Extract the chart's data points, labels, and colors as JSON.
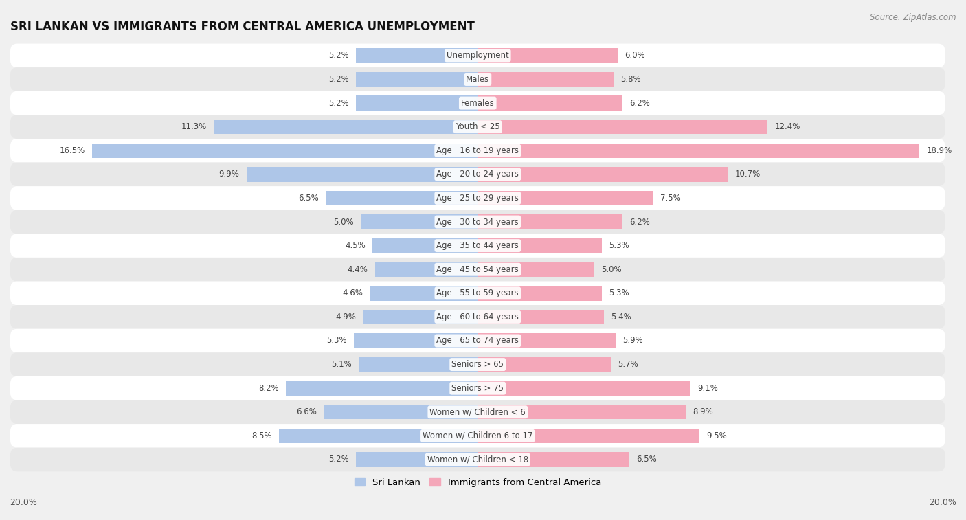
{
  "title": "SRI LANKAN VS IMMIGRANTS FROM CENTRAL AMERICA UNEMPLOYMENT",
  "source": "Source: ZipAtlas.com",
  "categories": [
    "Unemployment",
    "Males",
    "Females",
    "Youth < 25",
    "Age | 16 to 19 years",
    "Age | 20 to 24 years",
    "Age | 25 to 29 years",
    "Age | 30 to 34 years",
    "Age | 35 to 44 years",
    "Age | 45 to 54 years",
    "Age | 55 to 59 years",
    "Age | 60 to 64 years",
    "Age | 65 to 74 years",
    "Seniors > 65",
    "Seniors > 75",
    "Women w/ Children < 6",
    "Women w/ Children 6 to 17",
    "Women w/ Children < 18"
  ],
  "sri_lankan": [
    5.2,
    5.2,
    5.2,
    11.3,
    16.5,
    9.9,
    6.5,
    5.0,
    4.5,
    4.4,
    4.6,
    4.9,
    5.3,
    5.1,
    8.2,
    6.6,
    8.5,
    5.2
  ],
  "central_america": [
    6.0,
    5.8,
    6.2,
    12.4,
    18.9,
    10.7,
    7.5,
    6.2,
    5.3,
    5.0,
    5.3,
    5.4,
    5.9,
    5.7,
    9.1,
    8.9,
    9.5,
    6.5
  ],
  "sri_lankan_color": "#aec6e8",
  "central_america_color": "#f4a7b9",
  "bg_color": "#f0f0f0",
  "row_color_odd": "#ffffff",
  "row_color_even": "#e8e8e8",
  "axis_limit": 20.0,
  "label_fontsize": 8.5,
  "title_fontsize": 12,
  "bar_height": 0.62,
  "legend_labels": [
    "Sri Lankan",
    "Immigrants from Central America"
  ],
  "value_label_color": "#444444",
  "category_label_color": "#444444"
}
